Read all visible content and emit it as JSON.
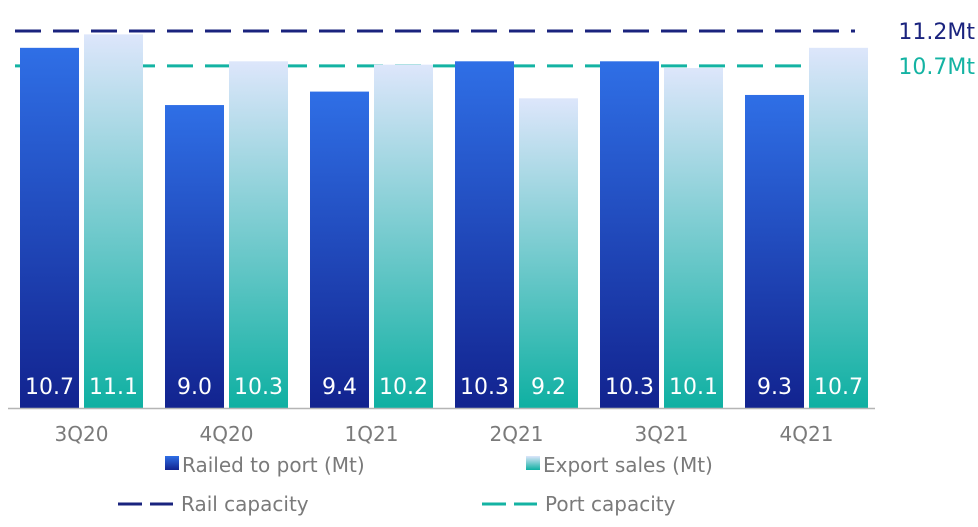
{
  "chart_data": {
    "type": "bar",
    "categories": [
      "3Q20",
      "4Q20",
      "1Q21",
      "2Q21",
      "3Q21",
      "4Q21"
    ],
    "series": [
      {
        "name": "Railed to port (Mt)",
        "values": [
          10.7,
          9.0,
          9.4,
          10.3,
          10.3,
          9.3
        ],
        "labels": [
          "10.7",
          "9.0",
          "9.4",
          "10.3",
          "10.3",
          "9.3"
        ],
        "color_top": "#2f6fe6",
        "color_bottom": "#12238f"
      },
      {
        "name": "Export sales (Mt)",
        "values": [
          11.1,
          10.3,
          10.2,
          9.2,
          10.1,
          10.7
        ],
        "labels": [
          "11.1",
          "10.3",
          "10.2",
          "9.2",
          "10.1",
          "10.7"
        ],
        "color_top": "#dde6fb",
        "color_bottom": "#0fb0a2"
      }
    ],
    "reference_lines": [
      {
        "name": "Rail capacity",
        "value": 11.2,
        "label": "11.2Mt",
        "color": "#1a237e",
        "style": "dashed"
      },
      {
        "name": "Port capacity",
        "value": 10.7,
        "label": "10.7Mt",
        "color": "#14b3a3",
        "style": "dashed"
      }
    ],
    "ylim": [
      0,
      11.2
    ],
    "grid": false,
    "legend_position": "bottom",
    "label_color": "#ffffff",
    "axis_text_color": "#7a7a7a"
  }
}
